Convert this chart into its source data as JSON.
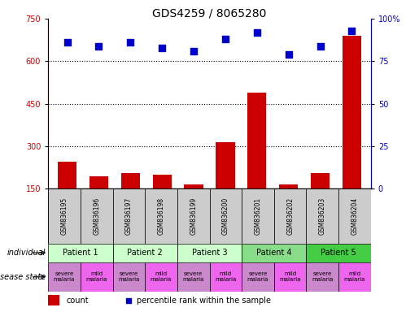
{
  "title": "GDS4259 / 8065280",
  "samples": [
    "GSM836195",
    "GSM836196",
    "GSM836197",
    "GSM836198",
    "GSM836199",
    "GSM836200",
    "GSM836201",
    "GSM836202",
    "GSM836203",
    "GSM836204"
  ],
  "counts": [
    245,
    195,
    205,
    200,
    165,
    315,
    490,
    165,
    205,
    690
  ],
  "percentile_ranks": [
    86,
    84,
    86,
    83,
    81,
    88,
    92,
    79,
    84,
    93
  ],
  "ylim_left": [
    150,
    750
  ],
  "ylim_right": [
    0,
    100
  ],
  "yticks_left": [
    150,
    300,
    450,
    600,
    750
  ],
  "yticks_right": [
    0,
    25,
    50,
    75,
    100
  ],
  "patients": [
    {
      "label": "Patient 1",
      "span": [
        0,
        2
      ],
      "color": "#ccffcc"
    },
    {
      "label": "Patient 2",
      "span": [
        2,
        4
      ],
      "color": "#ccffcc"
    },
    {
      "label": "Patient 3",
      "span": [
        4,
        6
      ],
      "color": "#ccffcc"
    },
    {
      "label": "Patient 4",
      "span": [
        6,
        8
      ],
      "color": "#88dd88"
    },
    {
      "label": "Patient 5",
      "span": [
        8,
        10
      ],
      "color": "#44cc44"
    }
  ],
  "disease_states": [
    {
      "label": "severe\nmalaria",
      "color": "#cc88cc"
    },
    {
      "label": "mild\nmalaria",
      "color": "#ee66ee"
    },
    {
      "label": "severe\nmalaria",
      "color": "#cc88cc"
    },
    {
      "label": "mild\nmalaria",
      "color": "#ee66ee"
    },
    {
      "label": "severe\nmalaria",
      "color": "#cc88cc"
    },
    {
      "label": "mild\nmalaria",
      "color": "#ee66ee"
    },
    {
      "label": "severe\nmalaria",
      "color": "#cc88cc"
    },
    {
      "label": "mild\nmalaria",
      "color": "#ee66ee"
    },
    {
      "label": "severe\nmalaria",
      "color": "#cc88cc"
    },
    {
      "label": "mild\nmalaria",
      "color": "#ee66ee"
    }
  ],
  "bar_color": "#cc0000",
  "dot_color": "#0000cc",
  "bar_width": 0.6,
  "dot_size": 40,
  "sample_row_color": "#cccccc",
  "individual_label": "individual",
  "disease_state_label": "disease state",
  "gridlines": [
    300,
    450,
    600
  ],
  "left_label_color": "#cc0000",
  "right_label_color": "#0000cc"
}
